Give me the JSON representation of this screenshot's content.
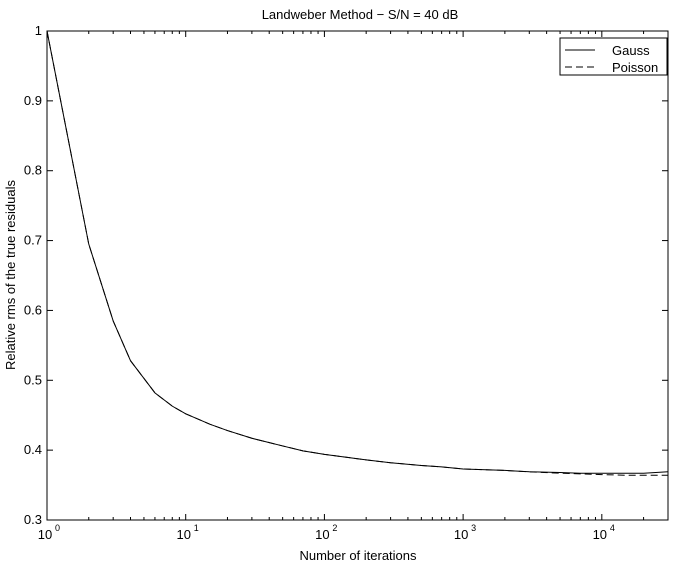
{
  "chart_data": {
    "type": "line",
    "title": "Landweber Method − S/N = 40 dB",
    "xlabel": "Number of iterations",
    "ylabel": "Relative rms of the true residuals",
    "x_scale": "log",
    "xlim": [
      1,
      30000
    ],
    "ylim": [
      0.3,
      1.0
    ],
    "x_tick_values": [
      1,
      10,
      100,
      1000,
      10000
    ],
    "x_tick_labels": [
      {
        "base": "10",
        "exp": "0"
      },
      {
        "base": "10",
        "exp": "1"
      },
      {
        "base": "10",
        "exp": "2"
      },
      {
        "base": "10",
        "exp": "3"
      },
      {
        "base": "10",
        "exp": "4"
      }
    ],
    "y_tick_values": [
      0.3,
      0.4,
      0.5,
      0.6,
      0.7,
      0.8,
      0.9,
      1.0
    ],
    "y_tick_labels": [
      "0.3",
      "0.4",
      "0.5",
      "0.6",
      "0.7",
      "0.8",
      "0.9",
      "1"
    ],
    "grid": false,
    "legend_position": "top-right",
    "series": [
      {
        "name": "Gauss",
        "style": "solid",
        "color": "#000000",
        "x": [
          1,
          2,
          3,
          4,
          6,
          8,
          10,
          15,
          20,
          30,
          50,
          70,
          100,
          200,
          300,
          500,
          700,
          1000,
          2000,
          3000,
          5000,
          7000,
          10000,
          15000,
          20000,
          30000
        ],
        "y": [
          1.0,
          0.695,
          0.585,
          0.528,
          0.482,
          0.463,
          0.452,
          0.437,
          0.428,
          0.417,
          0.406,
          0.399,
          0.394,
          0.386,
          0.382,
          0.378,
          0.376,
          0.373,
          0.371,
          0.369,
          0.368,
          0.367,
          0.367,
          0.367,
          0.367,
          0.369
        ]
      },
      {
        "name": "Poisson",
        "style": "dashed",
        "color": "#000000",
        "x": [
          1,
          2,
          3,
          4,
          6,
          8,
          10,
          15,
          20,
          30,
          50,
          70,
          100,
          200,
          300,
          500,
          700,
          1000,
          2000,
          3000,
          5000,
          7000,
          10000,
          15000,
          20000,
          30000
        ],
        "y": [
          1.0,
          0.695,
          0.585,
          0.528,
          0.482,
          0.463,
          0.452,
          0.437,
          0.428,
          0.417,
          0.406,
          0.399,
          0.394,
          0.386,
          0.382,
          0.378,
          0.376,
          0.373,
          0.371,
          0.369,
          0.367,
          0.366,
          0.365,
          0.364,
          0.364,
          0.364
        ]
      }
    ]
  }
}
